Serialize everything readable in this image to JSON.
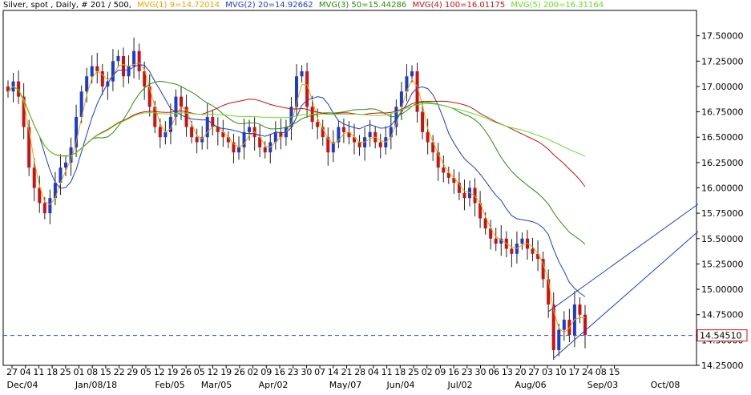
{
  "header": {
    "instrument": "Silver, spot , Daily, # 201 / 500,",
    "indicators": [
      {
        "label": "MVG(1) 9=14.72014",
        "color": "#f0a000"
      },
      {
        "label": "MVG(2) 20=14.92662",
        "color": "#1a3ccf"
      },
      {
        "label": "MVG(3) 50=15.44286",
        "color": "#2a8a0a"
      },
      {
        "label": "MVG(4) 100=16.01175",
        "color": "#cc1010"
      },
      {
        "label": "MVG(5) 200=16.31164",
        "color": "#66dd22"
      }
    ]
  },
  "chart_data": {
    "type": "candlestick",
    "title": "Silver, spot , Daily",
    "ylim": [
      14.25,
      17.75
    ],
    "y_ticks": [
      "17.50000",
      "17.25000",
      "17.00000",
      "16.75000",
      "16.50000",
      "16.25000",
      "16.00000",
      "15.75000",
      "15.50000",
      "15.25000",
      "15.00000",
      "14.75000",
      "14.50000",
      "14.25000"
    ],
    "last_price_label": "14.54510",
    "x_day_ticks": [
      "27",
      "04",
      "11",
      "18",
      "25",
      "01",
      "08",
      "15",
      "22",
      "29",
      "05",
      "12",
      "19",
      "26",
      "05",
      "12",
      "19",
      "26",
      "02",
      "09",
      "16",
      "23",
      "30",
      "07",
      "14",
      "21",
      "28",
      "04",
      "11",
      "18",
      "25",
      "02",
      "09",
      "16",
      "23",
      "30",
      "06",
      "13",
      "20",
      "27",
      "03",
      "10",
      "17",
      "24",
      "08",
      "15"
    ],
    "x_month_ticks": [
      "Dec/04",
      "Jan/08/18",
      "Feb/05",
      "Mar/05",
      "Apr/02",
      "May/07",
      "Jun/04",
      "Jul/02",
      "Aug/06",
      "Sep/03",
      "Oct/08"
    ],
    "closes_approx": [
      16.95,
      17.05,
      16.9,
      16.6,
      16.2,
      16.0,
      15.85,
      15.75,
      15.9,
      16.05,
      16.2,
      16.25,
      16.4,
      16.7,
      16.95,
      17.1,
      17.2,
      17.15,
      17.0,
      17.05,
      17.25,
      17.3,
      17.1,
      17.2,
      17.35,
      17.15,
      17.0,
      16.8,
      16.6,
      16.5,
      16.55,
      16.7,
      16.9,
      16.8,
      16.6,
      16.5,
      16.45,
      16.5,
      16.7,
      16.6,
      16.55,
      16.5,
      16.45,
      16.35,
      16.4,
      16.55,
      16.6,
      16.5,
      16.4,
      16.35,
      16.45,
      16.55,
      16.5,
      16.6,
      16.8,
      17.1,
      17.15,
      16.8,
      16.65,
      16.6,
      16.5,
      16.35,
      16.45,
      16.6,
      16.55,
      16.5,
      16.45,
      16.4,
      16.5,
      16.55,
      16.45,
      16.4,
      16.5,
      16.6,
      16.8,
      16.95,
      17.1,
      17.15,
      16.75,
      16.55,
      16.45,
      16.35,
      16.2,
      16.15,
      16.1,
      16.05,
      15.95,
      15.9,
      16.0,
      15.85,
      15.7,
      15.6,
      15.5,
      15.45,
      15.5,
      15.4,
      15.35,
      15.45,
      15.5,
      15.4,
      15.35,
      15.3,
      15.1,
      14.85,
      14.4,
      14.6,
      14.7,
      14.55,
      14.85,
      14.75,
      14.55
    ],
    "moving_averages": [
      {
        "name": "MVG(1) 9",
        "color": "#f0a000",
        "last": 14.72014
      },
      {
        "name": "MVG(2) 20",
        "color": "#1a3ccf",
        "last": 14.92662
      },
      {
        "name": "MVG(3) 50",
        "color": "#2a8a0a",
        "last": 15.44286
      },
      {
        "name": "MVG(4) 100",
        "color": "#cc1010",
        "last": 16.01175
      },
      {
        "name": "MVG(5) 200",
        "color": "#66dd22",
        "last": 16.31164
      }
    ],
    "trend_channel": {
      "color": "#1a3ccf"
    },
    "up_color": "#1a3ccf",
    "down_color": "#d01010"
  }
}
